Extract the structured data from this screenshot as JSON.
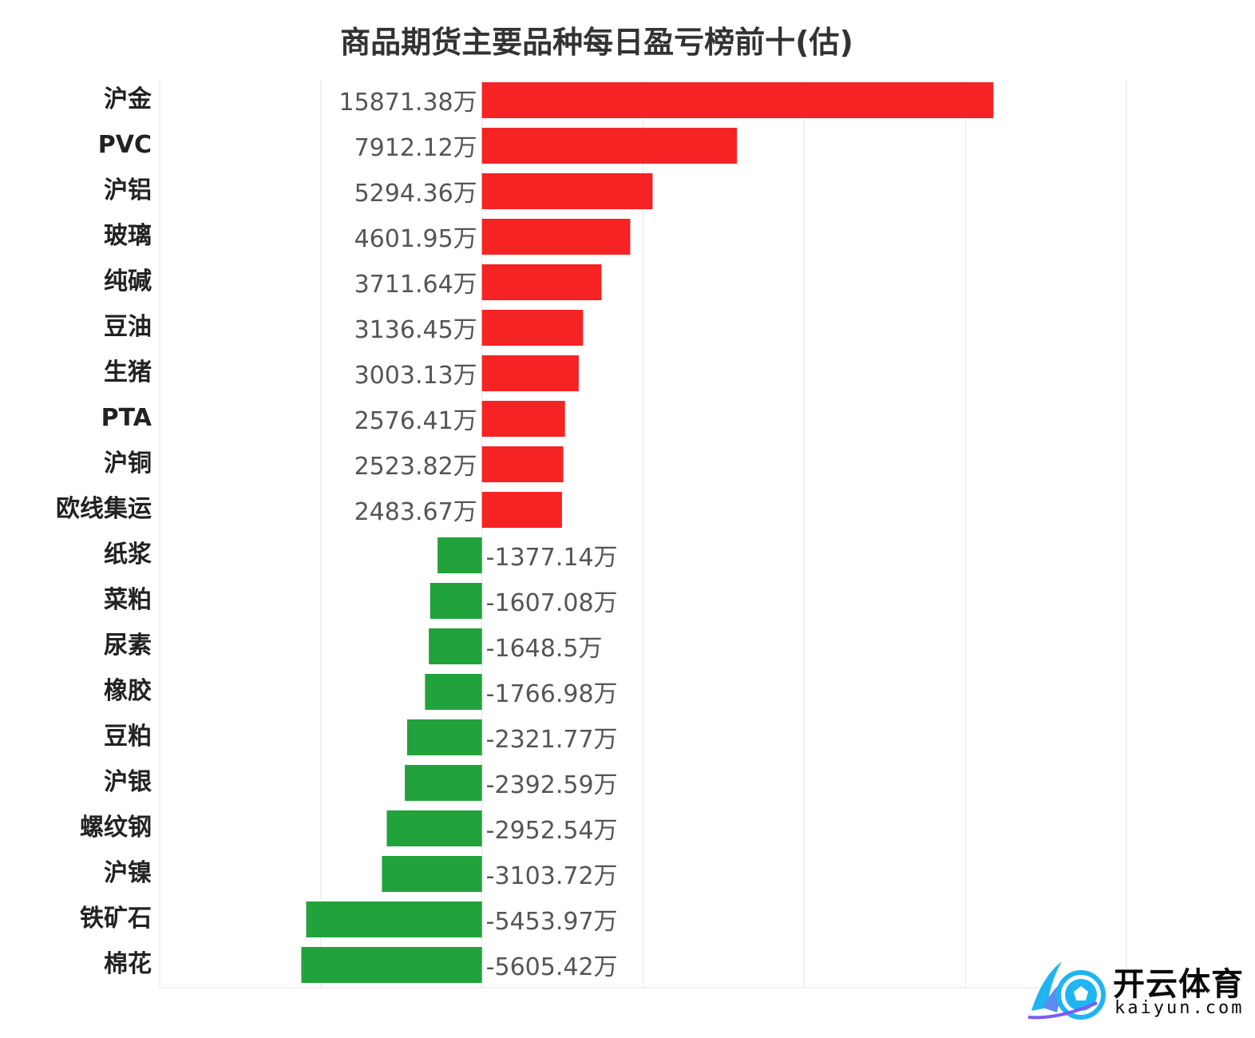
{
  "chart_data": {
    "type": "bar",
    "orientation": "horizontal",
    "title": "商品期货主要品种每日盈亏榜前十(估)",
    "value_suffix": "万",
    "categories": [
      "沪金",
      "PVC",
      "沪铝",
      "玻璃",
      "纯碱",
      "豆油",
      "生猪",
      "PTA",
      "沪铜",
      "欧线集运",
      "纸浆",
      "菜粕",
      "尿素",
      "橡胶",
      "豆粕",
      "沪银",
      "螺纹钢",
      "沪镍",
      "铁矿石",
      "棉花"
    ],
    "values": [
      15871.38,
      7912.12,
      5294.36,
      4601.95,
      3711.64,
      3136.45,
      3003.13,
      2576.41,
      2523.82,
      2483.67,
      -1377.14,
      -1607.08,
      -1648.5,
      -1766.98,
      -2321.77,
      -2392.59,
      -2952.54,
      -3103.72,
      -5453.97,
      -5605.42
    ],
    "value_labels": [
      "15871.38万",
      "7912.12万",
      "5294.36万",
      "4601.95万",
      "3711.64万",
      "3136.45万",
      "3003.13万",
      "2576.41万",
      "2523.82万",
      "2483.67万",
      "-1377.14万",
      "-1607.08万",
      "-1648.5万",
      "-1766.98万",
      "-2321.77万",
      "-2392.59万",
      "-2952.54万",
      "-3103.72万",
      "-5453.97万",
      "-5605.42万"
    ],
    "xlim": [
      -10000,
      20000
    ],
    "x_grid_step": 5000,
    "grid": true,
    "legend": "none",
    "colors": {
      "positive": "#f52324",
      "negative": "#21a23b",
      "grid": "#e6e6e6"
    }
  },
  "watermark": {
    "brand_cn": "开云体育",
    "brand_en": "kaiyun.com",
    "icon": "kaiyun-soccer-logo-icon",
    "colors": {
      "primary": "#1fb5f0",
      "secondary": "#7b5cf0"
    }
  }
}
